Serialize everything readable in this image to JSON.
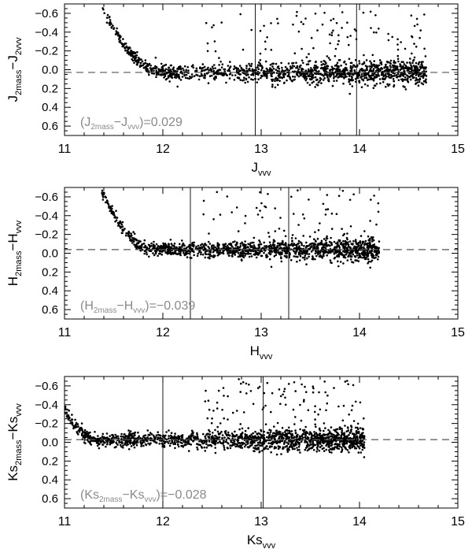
{
  "chart_data": [
    {
      "type": "scatter",
      "ylabel": {
        "main": "J",
        "sub1": "2mass",
        "mid": "−J",
        "sub2": "2vvv"
      },
      "xlabel": {
        "main": "J",
        "sub": "vvv"
      },
      "xlim": [
        11,
        15
      ],
      "ylim": [
        0.7,
        -0.7
      ],
      "xticks": [
        "11",
        "12",
        "13",
        "14",
        "15"
      ],
      "yticks": [
        "−0.6",
        "−0.4",
        "−0.2",
        "0.0",
        "0.2",
        "0.4",
        "0.6"
      ],
      "ytick_values": [
        -0.6,
        -0.4,
        -0.2,
        0.0,
        0.2,
        0.4,
        0.6
      ],
      "offset_line": 0.029,
      "vlines": [
        12.94,
        13.97
      ],
      "annotation": {
        "open": "(J",
        "sub1": "2mass",
        "mid": "−J",
        "sub2": "vvv",
        "close": ")=0.029"
      },
      "scatter_model": {
        "x_start": 11.38,
        "x_end": 14.68,
        "steep_until": 11.95,
        "y_start": -0.65,
        "noise": 0.05,
        "n_points": 1600
      }
    },
    {
      "type": "scatter",
      "ylabel": {
        "main": "H",
        "sub1": "2mass",
        "mid": "−H",
        "sub2": "vvv"
      },
      "xlabel": {
        "main": "H",
        "sub": "vvv"
      },
      "xlim": [
        11,
        15
      ],
      "ylim": [
        0.7,
        -0.7
      ],
      "xticks": [
        "11",
        "12",
        "13",
        "14",
        "15"
      ],
      "yticks": [
        "−0.6",
        "−0.4",
        "−0.2",
        "0.0",
        "0.2",
        "0.4",
        "0.6"
      ],
      "ytick_values": [
        -0.6,
        -0.4,
        -0.2,
        0.0,
        0.2,
        0.4,
        0.6
      ],
      "offset_line": -0.039,
      "vlines": [
        12.28,
        13.28
      ],
      "annotation": {
        "open": "(H",
        "sub1": "2mass",
        "mid": "−H",
        "sub2": "vvv",
        "close": ")=−0.039"
      },
      "scatter_model": {
        "x_start": 11.38,
        "x_end": 14.2,
        "steep_until": 11.85,
        "y_start": -0.65,
        "noise": 0.045,
        "n_points": 1500
      }
    },
    {
      "type": "scatter",
      "ylabel": {
        "main": "Ks",
        "sub1": "2mass",
        "mid": "−Ks",
        "sub2": "vvv"
      },
      "xlabel": {
        "main": "Ks",
        "sub": "vvv"
      },
      "xlim": [
        11,
        15
      ],
      "ylim": [
        0.7,
        -0.7
      ],
      "xticks": [
        "11",
        "12",
        "13",
        "14",
        "15"
      ],
      "yticks": [
        "−0.6",
        "−0.4",
        "−0.2",
        "0.0",
        "0.2",
        "0.4",
        "0.6"
      ],
      "ytick_values": [
        -0.6,
        -0.4,
        -0.2,
        0.0,
        0.2,
        0.4,
        0.6
      ],
      "offset_line": -0.028,
      "vlines": [
        12.0,
        13.02
      ],
      "annotation": {
        "open": "(Ks",
        "sub1": "2mass",
        "mid": "−Ks",
        "sub2": "vvv",
        "close": ")=−0.028"
      },
      "scatter_model": {
        "x_start": 11.0,
        "x_end": 14.05,
        "steep_until": 11.3,
        "y_start": -0.35,
        "noise": 0.05,
        "n_points": 1700
      }
    }
  ]
}
